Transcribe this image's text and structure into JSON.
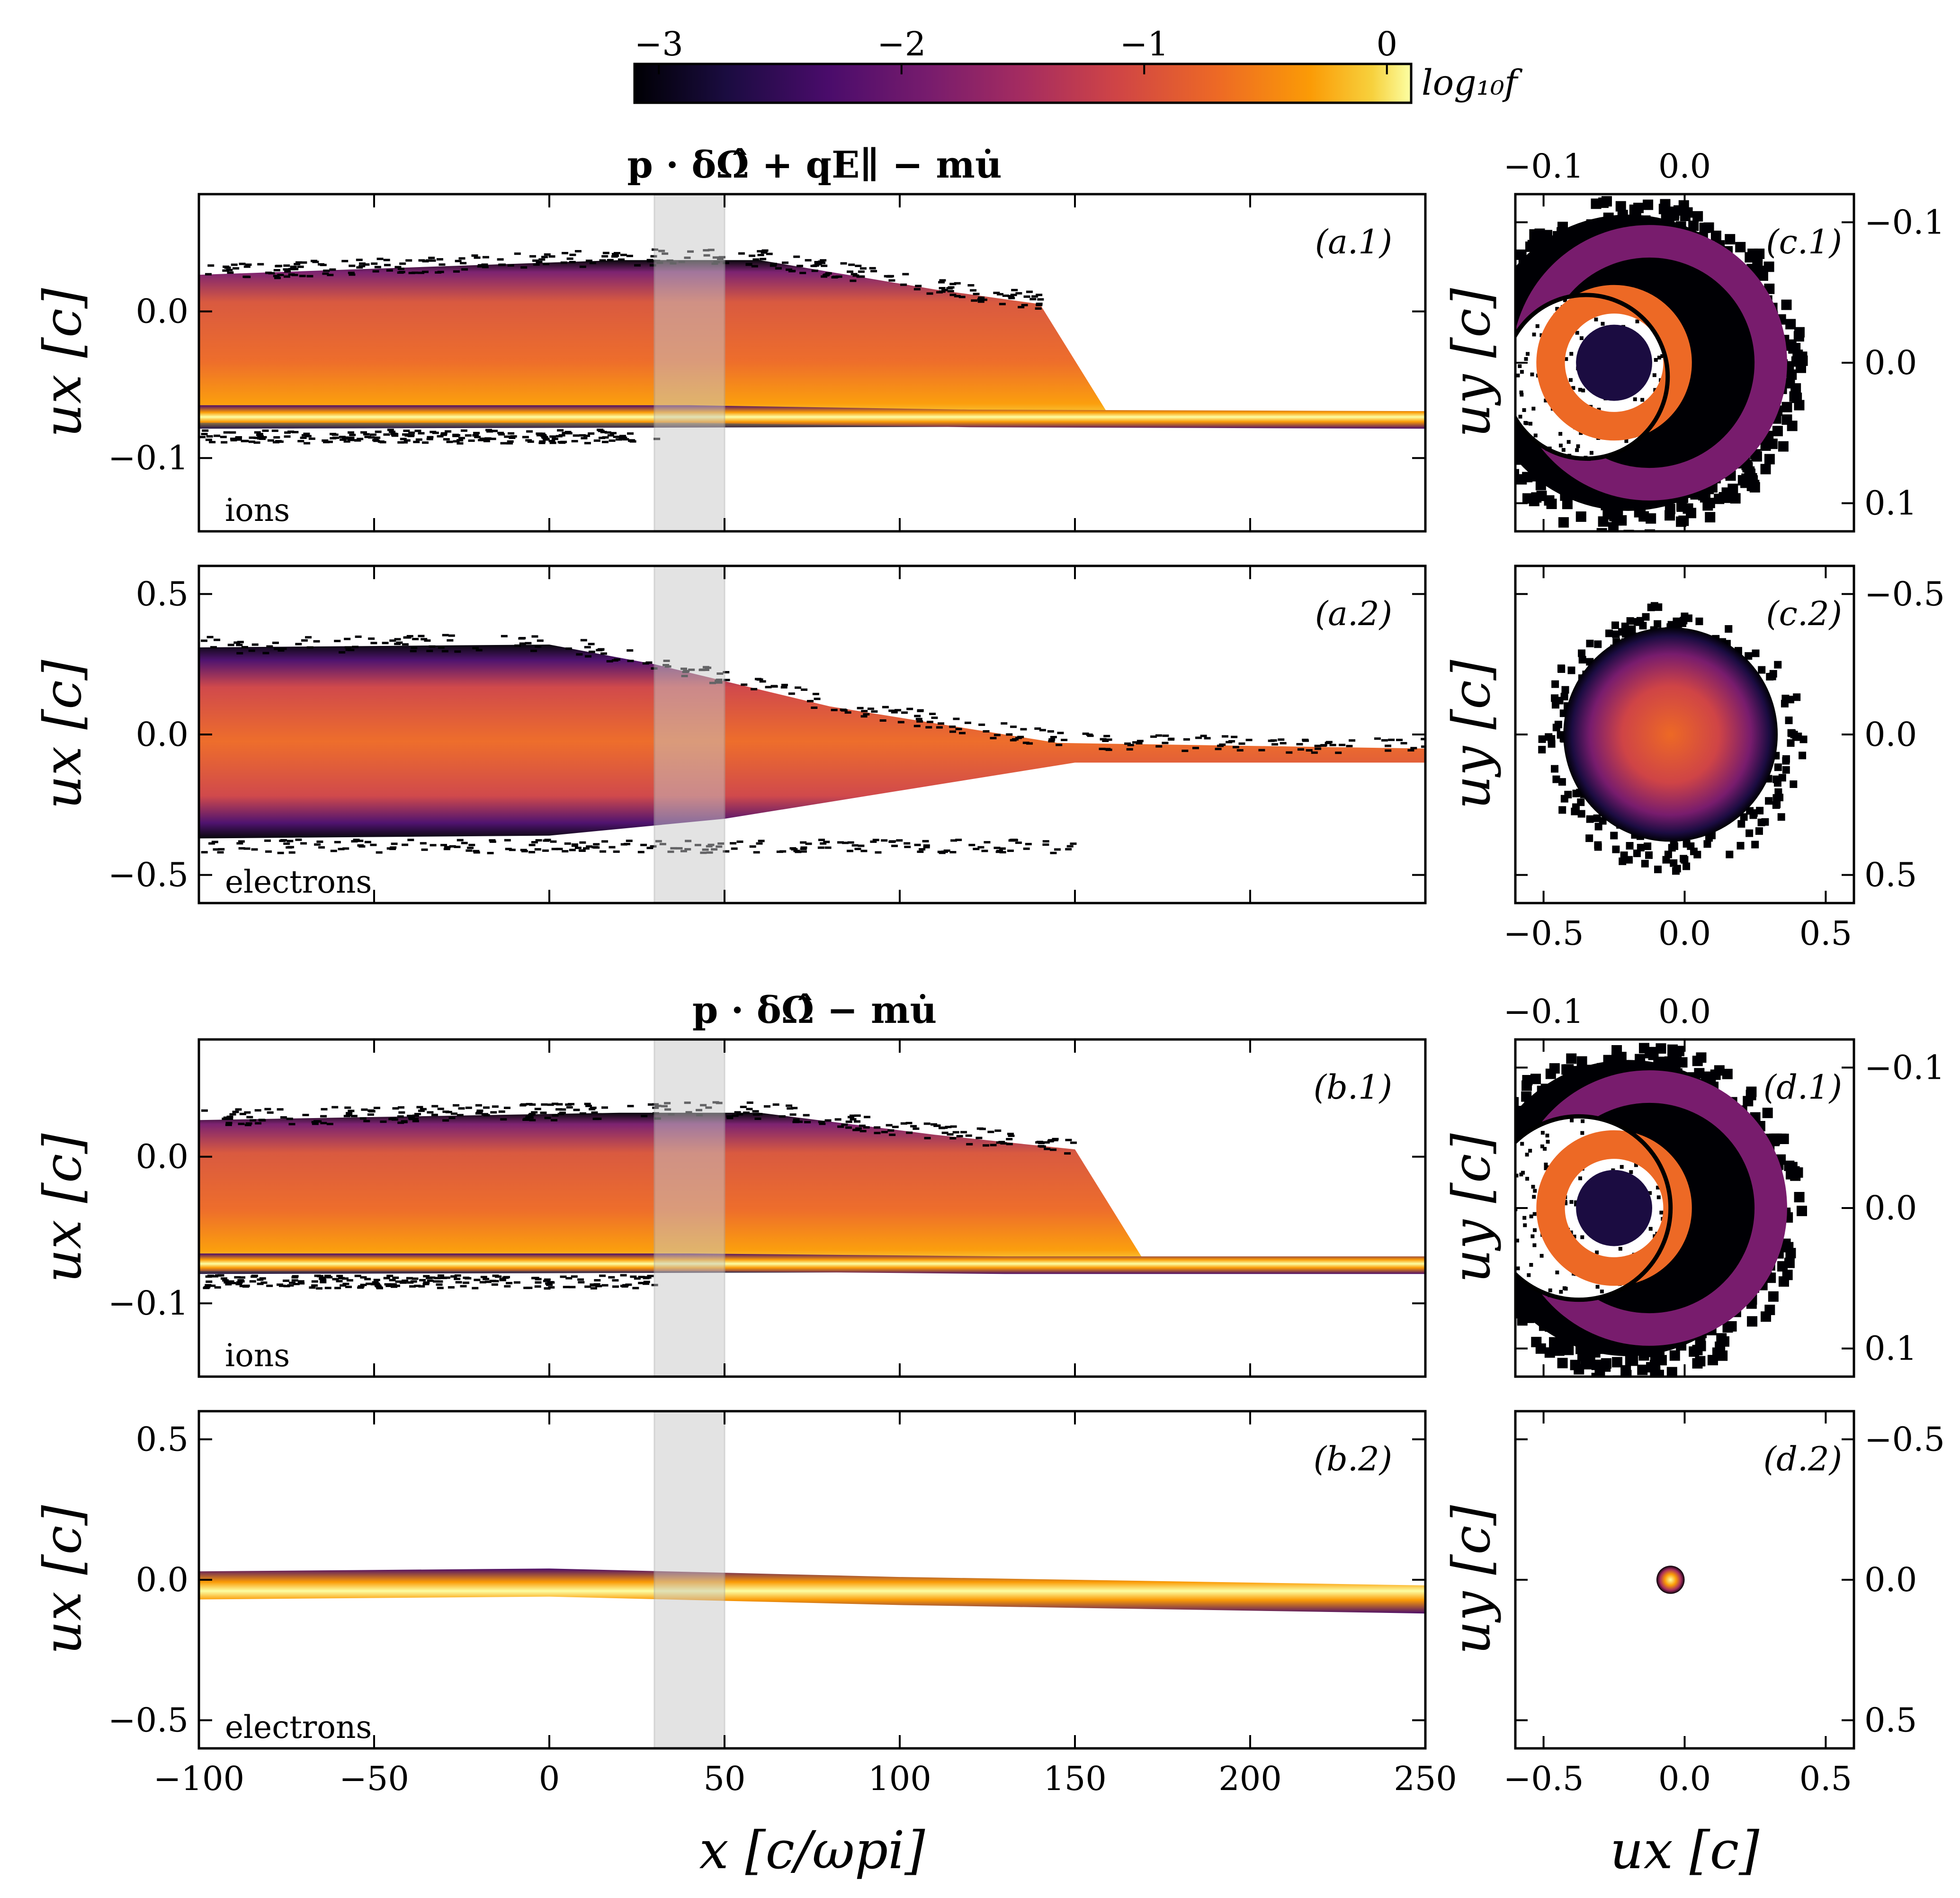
{
  "colorbar": {
    "label": "log₁₀f",
    "ticks": [
      "−3",
      "−2",
      "−1",
      "0"
    ],
    "tick_values": [
      -3,
      -2,
      -1,
      0
    ],
    "range": [
      -3.1,
      0.1
    ],
    "colormap": "inferno"
  },
  "rows": [
    {
      "title": "p · δΩ̂ + qE∥ − mu̇"
    },
    {
      "title": "p · δΩ̂ − mu̇"
    }
  ],
  "labels": {
    "xlabel_left": "x [c/ωpi]",
    "xlabel_right": "ux [c]",
    "ylabel_left": "ux [c]",
    "ylabel_right": "uy [c]",
    "ions": "ions",
    "electrons": "electrons"
  },
  "chart_data": [
    {
      "type": "heatmap",
      "panel": "(a.1)",
      "species_label": "ions",
      "xlim": [
        -100,
        250
      ],
      "ylim": [
        -0.15,
        0.08
      ],
      "x_ticks": [
        "−100",
        "−50",
        "0",
        "50",
        "100",
        "150",
        "200",
        "250"
      ],
      "y_ticks": [
        "0.0",
        "−0.1"
      ],
      "y_tick_values": [
        0.0,
        -0.1
      ],
      "shaded_x_range": [
        30,
        50
      ],
      "beam_upper_edge": [
        [
          -100,
          0.025
        ],
        [
          20,
          0.035
        ],
        [
          60,
          0.035
        ],
        [
          110,
          0.015
        ],
        [
          140,
          0.005
        ]
      ],
      "beam_lower_edge": [
        [
          -100,
          -0.08
        ],
        [
          250,
          -0.078
        ]
      ],
      "cold_beam_center": [
        [
          -100,
          -0.07
        ],
        [
          40,
          -0.07
        ],
        [
          120,
          -0.073
        ],
        [
          250,
          -0.074
        ]
      ]
    },
    {
      "type": "heatmap",
      "panel": "(a.2)",
      "species_label": "electrons",
      "xlim": [
        -100,
        250
      ],
      "ylim": [
        -0.6,
        0.6
      ],
      "y_ticks": [
        "0.5",
        "0.0",
        "−0.5"
      ],
      "y_tick_values": [
        0.5,
        0.0,
        -0.5
      ],
      "shaded_x_range": [
        30,
        50
      ],
      "beam_upper_edge": [
        [
          -100,
          0.31
        ],
        [
          0,
          0.32
        ],
        [
          30,
          0.25
        ],
        [
          80,
          0.1
        ],
        [
          145,
          -0.03
        ],
        [
          250,
          -0.05
        ]
      ],
      "beam_lower_edge": [
        [
          -100,
          -0.37
        ],
        [
          0,
          -0.36
        ],
        [
          50,
          -0.3
        ],
        [
          100,
          -0.2
        ],
        [
          150,
          -0.1
        ],
        [
          250,
          -0.1
        ]
      ]
    },
    {
      "type": "heatmap",
      "panel": "(c.1)",
      "xlim": [
        -0.12,
        0.12
      ],
      "ylim": [
        0.12,
        -0.12
      ],
      "top_ticks": [
        "−0.1",
        "0.0"
      ],
      "top_tick_values": [
        -0.1,
        0.0
      ],
      "right_ticks": [
        "−0.1",
        "0.0",
        "0.1"
      ],
      "right_tick_values": [
        -0.1,
        0.0,
        0.1
      ],
      "ring_center": [
        -0.04,
        0.0
      ],
      "inner_ring_radius": 0.045,
      "outer_ring_radius": 0.105,
      "circle_center": [
        -0.07,
        0.01
      ],
      "circle_radius": 0.058
    },
    {
      "type": "heatmap",
      "panel": "(c.2)",
      "xlim": [
        -0.6,
        0.6
      ],
      "ylim": [
        0.6,
        -0.6
      ],
      "bottom_ticks": [
        "−0.5",
        "0.0",
        "0.5"
      ],
      "bottom_tick_values": [
        -0.5,
        0.0,
        0.5
      ],
      "right_ticks": [
        "−0.5",
        "0.0",
        "0.5"
      ],
      "right_tick_values": [
        -0.5,
        0.0,
        0.5
      ],
      "blob_center": [
        -0.05,
        0.0
      ],
      "blob_radius": 0.38
    },
    {
      "type": "heatmap",
      "panel": "(b.1)",
      "species_label": "ions",
      "xlim": [
        -100,
        250
      ],
      "ylim": [
        -0.15,
        0.08
      ],
      "y_ticks": [
        "0.0",
        "−0.1"
      ],
      "y_tick_values": [
        0.0,
        -0.1
      ],
      "shaded_x_range": [
        30,
        50
      ],
      "beam_upper_edge": [
        [
          -100,
          0.025
        ],
        [
          20,
          0.03
        ],
        [
          60,
          0.03
        ],
        [
          110,
          0.015
        ],
        [
          150,
          0.005
        ]
      ],
      "beam_lower_edge": [
        [
          -100,
          -0.08
        ],
        [
          250,
          -0.078
        ]
      ],
      "cold_beam_center": [
        [
          -100,
          -0.072
        ],
        [
          40,
          -0.072
        ],
        [
          130,
          -0.074
        ],
        [
          250,
          -0.074
        ]
      ]
    },
    {
      "type": "heatmap",
      "panel": "(b.2)",
      "species_label": "electrons",
      "xlim": [
        -100,
        250
      ],
      "ylim": [
        -0.6,
        0.6
      ],
      "x_ticks": [
        "−100",
        "−50",
        "0",
        "50",
        "100",
        "150",
        "200",
        "250"
      ],
      "x_tick_values": [
        -100,
        -50,
        0,
        50,
        100,
        150,
        200,
        250
      ],
      "y_ticks": [
        "0.5",
        "0.0",
        "−0.5"
      ],
      "y_tick_values": [
        0.5,
        0.0,
        -0.5
      ],
      "shaded_x_range": [
        30,
        50
      ],
      "beam_center": [
        [
          -100,
          -0.02
        ],
        [
          0,
          -0.01
        ],
        [
          100,
          -0.04
        ],
        [
          250,
          -0.07
        ]
      ],
      "beam_halfwidth": 0.05
    },
    {
      "type": "heatmap",
      "panel": "(d.1)",
      "xlim": [
        -0.12,
        0.12
      ],
      "ylim": [
        0.12,
        -0.12
      ],
      "top_ticks": [
        "−0.1",
        "0.0"
      ],
      "top_tick_values": [
        -0.1,
        0.0
      ],
      "right_ticks": [
        "−0.1",
        "0.0",
        "0.1"
      ],
      "right_tick_values": [
        -0.1,
        0.0,
        0.1
      ],
      "ring_center": [
        -0.04,
        0.0
      ],
      "inner_ring_radius": 0.045,
      "outer_ring_radius": 0.105,
      "circle_center": [
        -0.075,
        0.0
      ],
      "circle_radius": 0.065
    },
    {
      "type": "heatmap",
      "panel": "(d.2)",
      "xlim": [
        -0.6,
        0.6
      ],
      "ylim": [
        0.6,
        -0.6
      ],
      "bottom_ticks": [
        "−0.5",
        "0.0",
        "0.5"
      ],
      "bottom_tick_values": [
        -0.5,
        0.0,
        0.5
      ],
      "right_ticks": [
        "−0.5",
        "0.0",
        "0.5"
      ],
      "right_tick_values": [
        -0.5,
        0.0,
        0.5
      ],
      "blob_center": [
        -0.05,
        0.0
      ],
      "blob_radius": 0.05
    }
  ]
}
